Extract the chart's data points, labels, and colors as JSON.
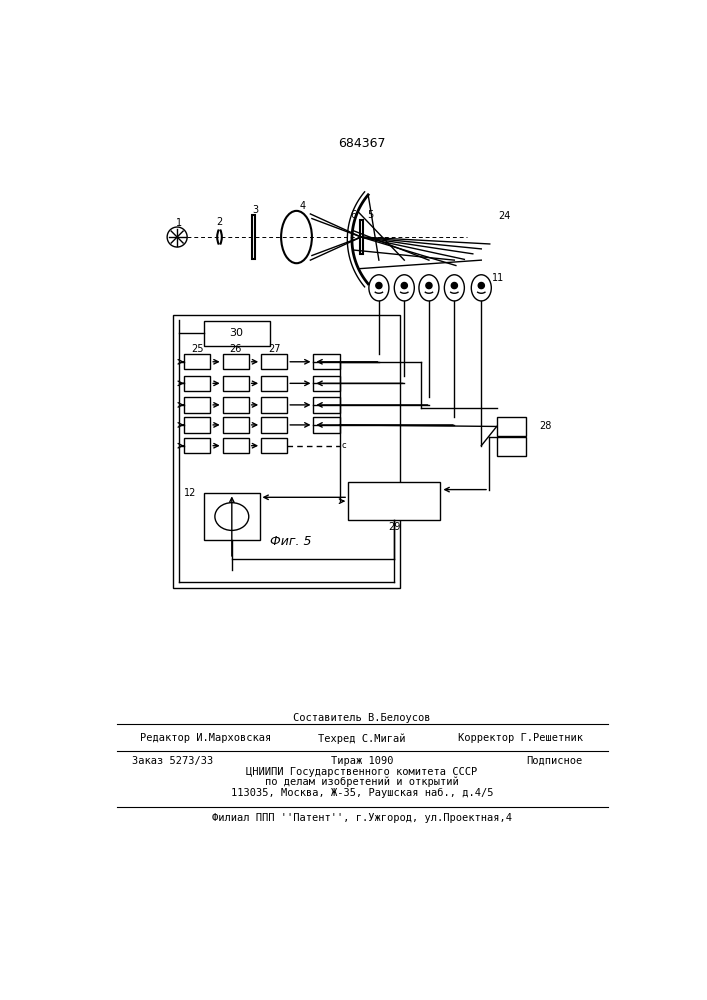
{
  "patent_number": "684367",
  "fig_label": "Фиг. 5",
  "bg_color": "#ffffff",
  "line_color": "#000000",
  "line_width": 1.0,
  "footer": {
    "line1_above": "Составитель В.Белоусов",
    "line1_left": "Редактор И.Марховская",
    "line1_center": "Техред С.Мигай",
    "line1_right": "Корректор Г.Решетник",
    "line2_left": "Заказ 5273/33",
    "line2_center": "Тираж 1090",
    "line2_right": "Подписное",
    "line3": "ЦНИИПИ Государственного комитета СССР",
    "line4": "по делам изобретений и открытий",
    "line5": "113035, Москва, Ж-35, Раушская наб., д.4/5",
    "line6": "Филиал ППП ''Патент'', г.Ужгород, ул.Проектная,4"
  }
}
